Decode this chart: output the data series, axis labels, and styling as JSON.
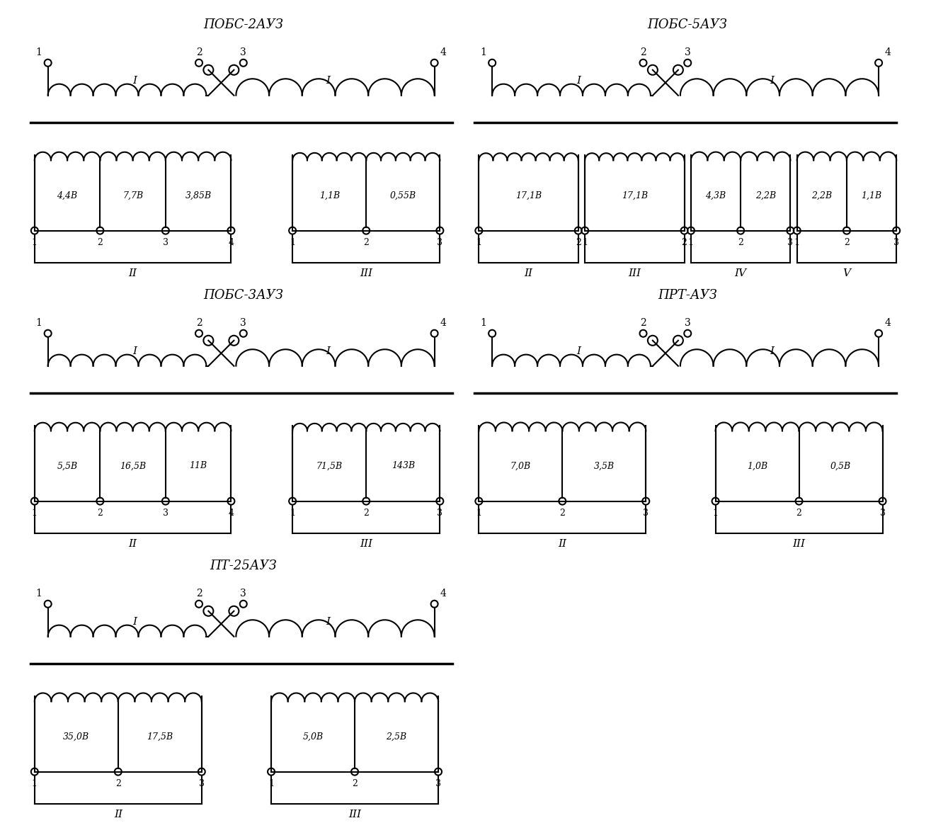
{
  "background_color": "#ffffff",
  "line_color": "#000000",
  "diagrams": [
    {
      "title": "ПОБС-2АУЗ",
      "col": 0,
      "row": 0,
      "sec_groups": [
        {
          "label": "II",
          "terms": [
            "1",
            "2",
            "3",
            "4"
          ],
          "voltages": [
            "4,4В",
            "7,7В",
            "3,85В"
          ]
        },
        {
          "label": "III",
          "terms": [
            "1",
            "2",
            "3"
          ],
          "voltages": [
            "1,1В",
            "0,55В"
          ]
        }
      ]
    },
    {
      "title": "ПОБС-5АУЗ",
      "col": 1,
      "row": 0,
      "sec_groups": [
        {
          "label": "II",
          "terms": [
            "1",
            "2"
          ],
          "voltages": [
            "17,1В"
          ]
        },
        {
          "label": "III",
          "terms": [
            "1",
            "2"
          ],
          "voltages": [
            "17,1В"
          ]
        },
        {
          "label": "IV",
          "terms": [
            "1",
            "2",
            "3"
          ],
          "voltages": [
            "4,3В",
            "2,2В"
          ]
        },
        {
          "label": "V",
          "terms": [
            "1",
            "2",
            "3"
          ],
          "voltages": [
            "2,2В",
            "1,1В"
          ]
        }
      ]
    },
    {
      "title": "ПОБС-3АУЗ",
      "col": 0,
      "row": 1,
      "sec_groups": [
        {
          "label": "II",
          "terms": [
            "1",
            "2",
            "3",
            "4"
          ],
          "voltages": [
            "5,5В",
            "16,5В",
            "11В"
          ]
        },
        {
          "label": "III",
          "terms": [
            "1",
            "2",
            "3"
          ],
          "voltages": [
            "71,5В",
            "143В"
          ]
        }
      ]
    },
    {
      "title": "ПРТ-АУЗ",
      "col": 1,
      "row": 1,
      "sec_groups": [
        {
          "label": "II",
          "terms": [
            "1",
            "2",
            "3"
          ],
          "voltages": [
            "7,0В",
            "3,5В"
          ]
        },
        {
          "label": "III",
          "terms": [
            "1",
            "2",
            "3"
          ],
          "voltages": [
            "1,0В",
            "0,5В"
          ]
        }
      ]
    },
    {
      "title": "ПТ-25АУЗ",
      "col": 0,
      "row": 2,
      "sec_groups": [
        {
          "label": "II",
          "terms": [
            "1",
            "2",
            "3"
          ],
          "voltages": [
            "35,0В",
            "17,5В"
          ]
        },
        {
          "label": "III",
          "terms": [
            "1",
            "2",
            "3"
          ],
          "voltages": [
            "5,0В",
            "2,5В"
          ]
        }
      ]
    }
  ]
}
